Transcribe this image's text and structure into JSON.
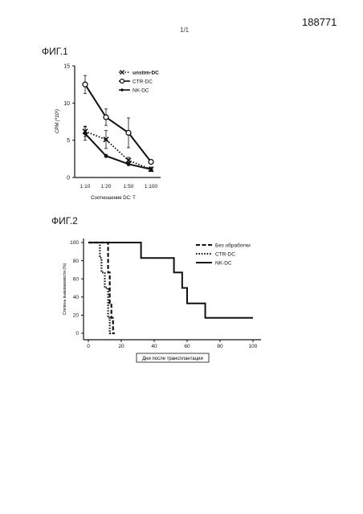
{
  "header": {
    "patent_number": "188771",
    "page_number": "1/1"
  },
  "figures": [
    {
      "label": "ФИГ.1"
    },
    {
      "label": "ФИГ.2"
    }
  ],
  "colors": {
    "ink": "#111111",
    "background": "#ffffff"
  },
  "chart_data": [
    {
      "type": "line",
      "categories": [
        "1:10",
        "1:20",
        "1:50",
        "1:100"
      ],
      "ylabel": "CPM (*10³)",
      "xlabel": "Соотношение DC: T",
      "ylim": [
        0,
        15
      ],
      "yticks": [
        0,
        5,
        10,
        15
      ],
      "legend_position": "top-right",
      "error_bars": true,
      "series": [
        {
          "name": "unstim-DC",
          "marker": "x",
          "line": "dotted",
          "values": [
            6.2,
            5.1,
            2.3,
            1.1
          ],
          "errors": [
            0.7,
            1.2,
            0.4,
            0.3
          ]
        },
        {
          "name": "CTR-DC",
          "marker": "open-circle",
          "line": "solid",
          "values": [
            12.5,
            8.1,
            6.0,
            2.1
          ],
          "errors": [
            1.2,
            1.1,
            2.0,
            0
          ]
        },
        {
          "name": "NK-DC",
          "marker": "filled-diamond",
          "line": "solid",
          "values": [
            5.9,
            2.9,
            1.8,
            1.1
          ],
          "errors": [
            0.9,
            0.2,
            0.2,
            0.2
          ]
        }
      ]
    },
    {
      "type": "line",
      "step": true,
      "ylabel": "Степень выживаемости (%)",
      "xlabel": "Дни после трансплантации",
      "xlim": [
        -5,
        100
      ],
      "ylim": [
        0,
        100
      ],
      "xticks": [
        0,
        20,
        40,
        60,
        80,
        100
      ],
      "yticks": [
        0,
        20,
        40,
        60,
        80,
        100
      ],
      "legend_position": "top-right",
      "series": [
        {
          "name": "Без обработки",
          "line": "dashed",
          "x": [
            0,
            12,
            12,
            13,
            13,
            14,
            14,
            15,
            15,
            16
          ],
          "y": [
            100,
            100,
            67,
            67,
            33,
            33,
            17,
            17,
            0,
            0
          ]
        },
        {
          "name": "CTR-DC",
          "line": "dotted",
          "x": [
            0,
            7,
            7,
            8,
            8,
            10,
            10,
            12,
            12,
            13,
            13,
            14
          ],
          "y": [
            100,
            100,
            83,
            83,
            67,
            67,
            50,
            50,
            17,
            17,
            0,
            0
          ]
        },
        {
          "name": "NK-DC",
          "line": "solid",
          "x": [
            0,
            32,
            32,
            52,
            52,
            57,
            57,
            60,
            60,
            71,
            71,
            100
          ],
          "y": [
            100,
            100,
            83,
            83,
            67,
            67,
            50,
            50,
            33,
            33,
            17,
            17
          ]
        }
      ]
    }
  ]
}
